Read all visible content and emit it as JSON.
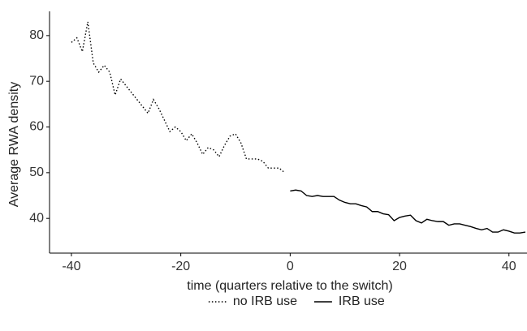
{
  "chart_data": {
    "type": "line",
    "x_label": "time (quarters relative to the switch)",
    "y_label": "Average RWA density",
    "xlim": [
      -44,
      43.3
    ],
    "xticks": [
      -40,
      -20,
      0,
      20,
      40
    ],
    "ylim": [
      32.4,
      85.3
    ],
    "yticks": [
      40,
      50,
      60,
      70,
      80
    ],
    "legend": "bottom",
    "series": [
      {
        "name": "no IRB use",
        "color": "#000000",
        "linestyle": "dotted",
        "x": [
          -40,
          -39,
          -38,
          -37,
          -36,
          -35,
          -34,
          -33,
          -32,
          -31,
          -30,
          -29,
          -28,
          -27,
          -26,
          -25,
          -24,
          -23,
          -22,
          -21,
          -20,
          -19,
          -18,
          -17,
          -16,
          -15,
          -14,
          -13,
          -12,
          -11,
          -10,
          -9,
          -8,
          -7,
          -6,
          -5,
          -4,
          -3,
          -2,
          -1
        ],
        "values": [
          78.5,
          79.5,
          76.5,
          83,
          74,
          72,
          73.5,
          72,
          67,
          70.5,
          69,
          67.5,
          66,
          64.5,
          63,
          66,
          64,
          61.5,
          59,
          60,
          59,
          57,
          58.5,
          56.5,
          54,
          55.5,
          55,
          53.5,
          56,
          58,
          58.5,
          56.5,
          53,
          53,
          53,
          52.5,
          51,
          51,
          51,
          50
        ]
      },
      {
        "name": "IRB use",
        "color": "#000000",
        "linestyle": "solid",
        "x": [
          0,
          1,
          2,
          3,
          4,
          5,
          6,
          7,
          8,
          9,
          10,
          11,
          12,
          13,
          14,
          15,
          16,
          17,
          18,
          19,
          20,
          21,
          22,
          23,
          24,
          25,
          26,
          27,
          28,
          29,
          30,
          31,
          32,
          33,
          34,
          35,
          36,
          37,
          38,
          39,
          40,
          41,
          42,
          43
        ],
        "values": [
          46,
          46.2,
          46,
          45,
          44.8,
          45,
          44.8,
          44.8,
          44.8,
          44,
          43.5,
          43.2,
          43.2,
          42.8,
          42.5,
          41.5,
          41.5,
          41,
          40.8,
          39.5,
          40.2,
          40.5,
          40.7,
          39.5,
          39,
          39.8,
          39.5,
          39.3,
          39.3,
          38.5,
          38.8,
          38.8,
          38.5,
          38.2,
          37.8,
          37.5,
          37.8,
          37,
          37,
          37.5,
          37.2,
          36.8,
          36.8,
          37
        ]
      }
    ]
  }
}
